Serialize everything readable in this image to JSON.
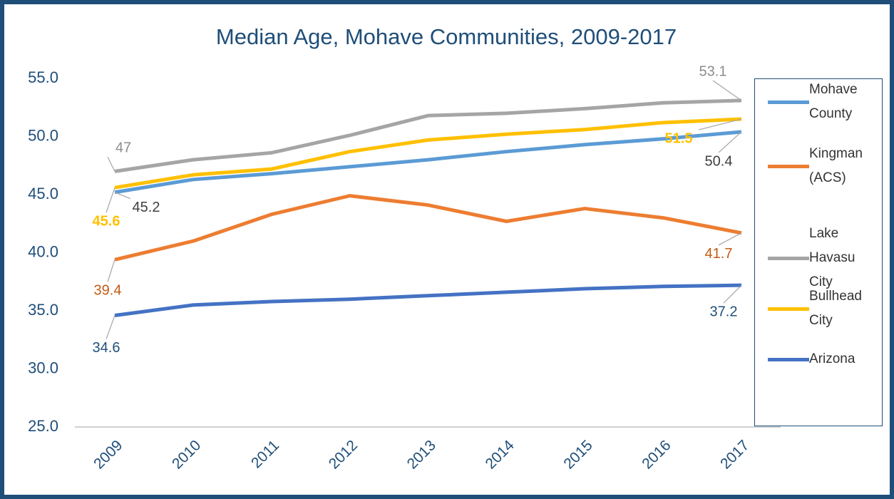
{
  "chart_data": {
    "type": "line",
    "title": "Median Age, Mohave Communities, 2009-2017",
    "categories": [
      "2009",
      "2010",
      "2011",
      "2012",
      "2013",
      "2014",
      "2015",
      "2016",
      "2017"
    ],
    "series": [
      {
        "name": "Mohave County",
        "color": "#5b9bd5",
        "label_color": "#404040",
        "values": [
          45.2,
          46.3,
          46.8,
          47.4,
          48.0,
          48.7,
          49.3,
          49.8,
          50.4
        ]
      },
      {
        "name": "Kingman (ACS)",
        "color": "#ed7d31",
        "label_color": "#c55a11",
        "values": [
          39.4,
          41.0,
          43.3,
          44.9,
          44.1,
          42.7,
          43.8,
          43.0,
          41.7
        ]
      },
      {
        "name": "Lake Havasu City",
        "color": "#a5a5a5",
        "label_color": "#8c8c8c",
        "values": [
          47,
          48.0,
          48.6,
          50.1,
          51.8,
          52.0,
          52.4,
          52.9,
          53.1
        ]
      },
      {
        "name": "Bullhead City",
        "color": "#ffc000",
        "label_color": "#ffc000",
        "values": [
          45.6,
          46.7,
          47.2,
          48.7,
          49.7,
          50.2,
          50.6,
          51.2,
          51.5
        ]
      },
      {
        "name": "Arizona",
        "color": "#4472c4",
        "label_color": "#1f4e79",
        "values": [
          34.6,
          35.5,
          35.8,
          36.0,
          36.3,
          36.6,
          36.9,
          37.1,
          37.2
        ]
      }
    ],
    "ylim": [
      25,
      55
    ],
    "yticks": [
      {
        "value": 25,
        "label": "25.0"
      },
      {
        "value": 30,
        "label": "30.0"
      },
      {
        "value": 35,
        "label": "35.0"
      },
      {
        "value": 40,
        "label": "40.0"
      },
      {
        "value": 45,
        "label": "45.0"
      },
      {
        "value": 50,
        "label": "50.0"
      },
      {
        "value": 55,
        "label": "55.0"
      }
    ],
    "legend": "right"
  }
}
